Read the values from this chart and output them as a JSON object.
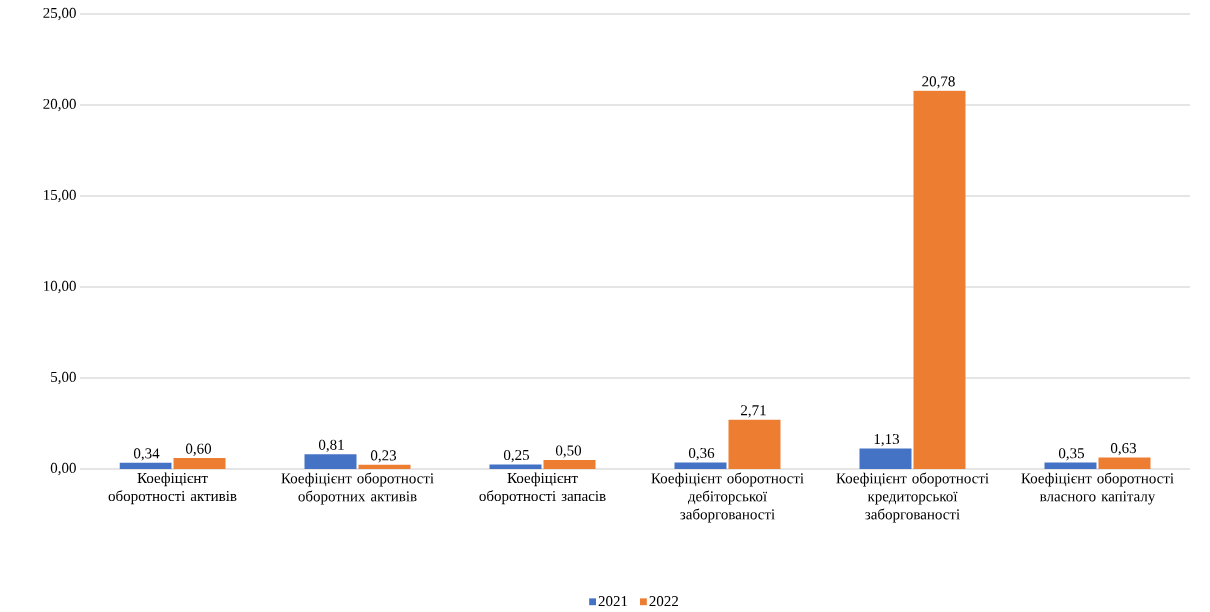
{
  "chart_data": {
    "type": "bar",
    "categories": [
      "Коефіцієнт оборотності активів",
      "Коефіцієнт оборотності оборотних активів",
      "Коефіцієнт оборотності запасів",
      "Коефіцієнт оборотності дебіторської заборгованості",
      "Коефіцієнт оборотності кредиторської заборгованості",
      "Коефіцієнт оборотності власного капіталу"
    ],
    "series": [
      {
        "name": "2021",
        "color": "#4472c4",
        "values": [
          0.34,
          0.81,
          0.25,
          0.36,
          1.13,
          0.35
        ],
        "value_labels": [
          "0,34",
          "0,81",
          "0,25",
          "0,36",
          "1,13",
          "0,35"
        ]
      },
      {
        "name": "2022",
        "color": "#ed7d31",
        "values": [
          0.6,
          0.23,
          0.5,
          2.71,
          20.78,
          0.63
        ],
        "value_labels": [
          "0,60",
          "0,23",
          "0,50",
          "2,71",
          "20,78",
          "0,63"
        ]
      }
    ],
    "ylim": [
      0,
      25
    ],
    "yticks": [
      {
        "value": 0,
        "label": "0,00"
      },
      {
        "value": 5,
        "label": "5,00"
      },
      {
        "value": 10,
        "label": "10,00"
      },
      {
        "value": 15,
        "label": "15,00"
      },
      {
        "value": 20,
        "label": "20,00"
      },
      {
        "value": 25,
        "label": "25,00"
      }
    ],
    "grid": "y",
    "legend": "bottom"
  }
}
